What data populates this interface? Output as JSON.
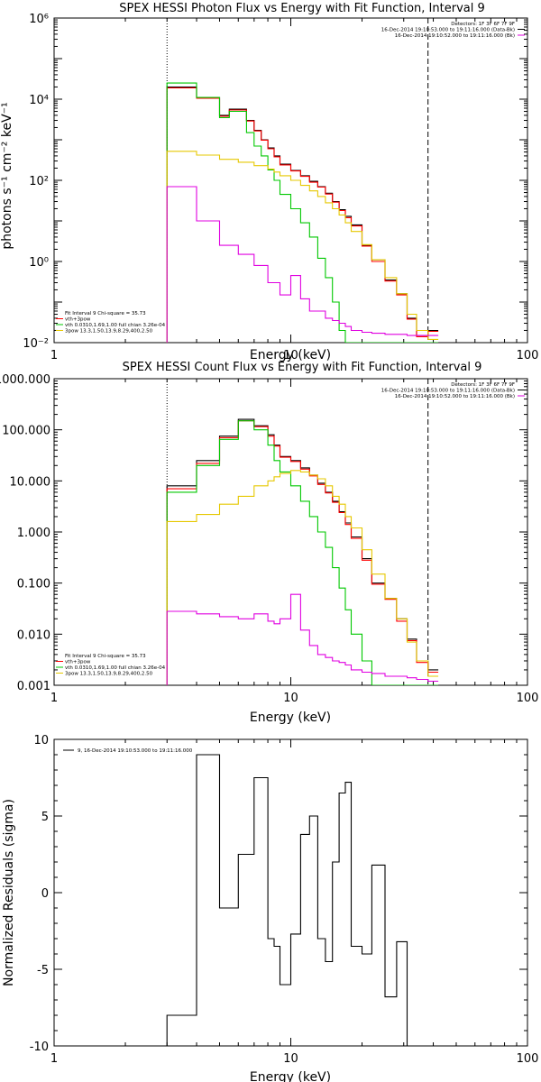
{
  "chart_data": [
    {
      "type": "line",
      "title": "SPEX HESSI Photon Flux vs Energy with Fit Function, Interval 9",
      "xlabel": "Energy (keV)",
      "ylabel": "photons s⁻¹ cm⁻² keV⁻¹",
      "xscale": "log",
      "yscale": "log",
      "xlim": [
        1,
        100
      ],
      "ylim": [
        0.01,
        1000000
      ],
      "x_tick_labels": [
        "1",
        "10",
        "100"
      ],
      "y_tick_labels": [
        "10⁻²",
        "10⁰",
        "10²",
        "10⁴",
        "10⁶"
      ],
      "fit_range": [
        3,
        38
      ],
      "legend_right": [
        "Detectors: 1F 3F 6F 7F 9F",
        "16-Dec-2014 19:10:53.000 to 19:11:16.000 (Data-Bk)",
        "16-Dec-2014 19:10:52.000 to 19:11:16.000 (Bk)"
      ],
      "legend_left": [
        "Fit Interval 9   Chi-square = 35.73",
        "vth+3pow",
        "vth 0.0310,1.69,1.00  full chian 3.26e-04",
        "3pow 13.3,1.50,13.9,8.29,400,2.50"
      ],
      "edges": [
        3,
        3.5,
        4,
        4.5,
        5,
        5.5,
        6,
        6.5,
        7,
        7.5,
        8,
        8.5,
        9,
        10,
        11,
        12,
        13,
        14,
        15,
        16,
        17,
        18,
        20,
        22,
        25,
        28,
        31,
        34,
        38,
        42
      ],
      "series": [
        {
          "color": "#000000",
          "values": [
            20000,
            20000,
            11000,
            11000,
            4000,
            5700,
            5700,
            3000,
            1700,
            1000,
            630,
            400,
            250,
            175,
            130,
            95,
            70,
            48,
            30,
            19,
            13,
            8,
            2.5,
            1.1,
            0.35,
            0.16,
            0.04,
            0.015,
            0.02
          ]
        },
        {
          "color": "#ff0000",
          "values": [
            19000,
            19000,
            10500,
            10500,
            3800,
            5400,
            5400,
            2900,
            1650,
            980,
            600,
            380,
            240,
            170,
            125,
            90,
            68,
            46,
            29,
            18,
            12,
            7.5,
            2.4,
            1.0,
            0.33,
            0.15,
            0.038,
            0.014,
            0.019
          ]
        },
        {
          "color": "#00c800",
          "values": [
            25000,
            25000,
            11000,
            11000,
            3500,
            5000,
            5000,
            1500,
            700,
            400,
            180,
            100,
            45,
            20,
            9,
            4,
            1.2,
            0.4,
            0.1,
            0.02,
            0.01,
            0.01,
            0.01,
            0.01,
            0.01,
            0.01,
            0.01,
            0.01,
            0.01
          ]
        },
        {
          "color": "#e6c800",
          "values": [
            520,
            520,
            420,
            420,
            330,
            330,
            280,
            280,
            230,
            230,
            190,
            160,
            130,
            100,
            75,
            55,
            40,
            28,
            20,
            14,
            9,
            5.5,
            2.6,
            1.1,
            0.4,
            0.16,
            0.05,
            0.02,
            0.012
          ]
        },
        {
          "color": "#e000e0",
          "values": [
            70,
            70,
            10,
            10,
            2.5,
            2.5,
            1.5,
            1.5,
            0.8,
            0.8,
            0.3,
            0.3,
            0.15,
            0.45,
            0.12,
            0.06,
            0.06,
            0.04,
            0.035,
            0.03,
            0.025,
            0.02,
            0.018,
            0.017,
            0.016,
            0.016,
            0.015,
            0.015,
            0.015
          ]
        }
      ]
    },
    {
      "type": "line",
      "title": "SPEX HESSI Count Flux vs Energy with Fit Function, Interval 9",
      "xlabel": "Energy (keV)",
      "ylabel": "",
      "xscale": "log",
      "yscale": "log",
      "xlim": [
        1,
        100
      ],
      "ylim": [
        0.001,
        1000
      ],
      "x_tick_labels": [
        "1",
        "10",
        "100"
      ],
      "y_tick_labels": [
        "0.001",
        "0.010",
        "0.100",
        "1.000",
        "10.000",
        "100.000",
        "1000.000"
      ],
      "fit_range": [
        3,
        38
      ],
      "legend_right": [
        "Detectors: 1F 3F 6F 7F 9F",
        "16-Dec-2014 19:10:53.000 to 19:11:16.000 (Data-Bk)",
        "16-Dec-2014 19:10:52.000 to 19:11:16.000 (Bk)"
      ],
      "legend_left": [
        "Fit Interval 9   Chi-square = 35.73",
        "vth+3pow",
        "vth 0.0310,1.69,1.00  full chian 3.26e-04",
        "3pow 13.3,1.50,13.9,8.29,400,2.50"
      ],
      "edges": [
        3,
        3.5,
        4,
        4.5,
        5,
        5.5,
        6,
        6.5,
        7,
        7.5,
        8,
        8.5,
        9,
        10,
        11,
        12,
        13,
        14,
        15,
        16,
        17,
        18,
        20,
        22,
        25,
        28,
        31,
        34,
        38,
        42
      ],
      "series": [
        {
          "color": "#000000",
          "values": [
            8,
            8,
            25,
            25,
            75,
            75,
            160,
            160,
            120,
            120,
            80,
            50,
            30,
            25,
            18,
            13,
            9,
            6,
            4,
            2.5,
            1.5,
            0.8,
            0.3,
            0.1,
            0.05,
            0.02,
            0.008,
            0.003,
            0.002
          ]
        },
        {
          "color": "#ff0000",
          "values": [
            7,
            7,
            22,
            22,
            70,
            70,
            150,
            150,
            115,
            115,
            75,
            48,
            29,
            24,
            17,
            12.5,
            8.5,
            5.8,
            3.8,
            2.4,
            1.4,
            0.75,
            0.28,
            0.095,
            0.048,
            0.018,
            0.0075,
            0.0028,
            0.0018
          ]
        },
        {
          "color": "#00c800",
          "values": [
            6,
            6,
            20,
            20,
            65,
            65,
            150,
            150,
            100,
            100,
            50,
            25,
            15,
            8,
            4,
            2,
            1,
            0.5,
            0.2,
            0.08,
            0.03,
            0.01,
            0.003,
            0.001,
            0.001,
            0.001,
            0.001,
            0.001,
            0.001
          ]
        },
        {
          "color": "#e6c800",
          "values": [
            1.6,
            1.6,
            2.2,
            2.2,
            3.5,
            3.5,
            5,
            5,
            8,
            8,
            10,
            12,
            14,
            16,
            15,
            13,
            11,
            8,
            5,
            3.5,
            2,
            1.2,
            0.45,
            0.15,
            0.05,
            0.02,
            0.007,
            0.003,
            0.0015
          ]
        },
        {
          "color": "#e000e0",
          "values": [
            0.028,
            0.028,
            0.025,
            0.025,
            0.022,
            0.022,
            0.02,
            0.02,
            0.025,
            0.025,
            0.018,
            0.016,
            0.02,
            0.06,
            0.012,
            0.006,
            0.004,
            0.0035,
            0.003,
            0.0028,
            0.0025,
            0.002,
            0.0018,
            0.0017,
            0.0015,
            0.0015,
            0.0014,
            0.0013,
            0.0012
          ]
        }
      ]
    },
    {
      "type": "line",
      "title": "",
      "xlabel": "Energy (keV)",
      "ylabel": "Normalized Residuals (sigma)",
      "xscale": "log",
      "yscale": "linear",
      "xlim": [
        1,
        100
      ],
      "ylim": [
        -10,
        10
      ],
      "x_tick_labels": [
        "1",
        "10",
        "100"
      ],
      "y_tick_labels": [
        "-10",
        "-5",
        "0",
        "5",
        "10"
      ],
      "legend": "9, 16-Dec-2014 19:10:53.000 to 19:11:16.000",
      "edges": [
        3,
        3.5,
        4,
        4.5,
        5,
        5.5,
        6,
        6.5,
        7,
        7.5,
        8,
        8.5,
        9,
        10,
        11,
        12,
        13,
        14,
        15,
        16,
        17,
        18,
        20,
        22,
        25,
        28,
        31,
        34,
        38,
        42
      ],
      "series": [
        {
          "color": "#000000",
          "values": [
            -8,
            -8,
            9,
            9,
            -1,
            -1,
            2.5,
            2.5,
            7.5,
            7.5,
            -3,
            -3.5,
            -6,
            -2.7,
            3.8,
            5,
            -3,
            -4.5,
            2,
            6.5,
            7.2,
            -3.5,
            -4,
            1.8,
            -6.8,
            -3.2,
            -10,
            -10,
            -10
          ]
        }
      ]
    }
  ]
}
